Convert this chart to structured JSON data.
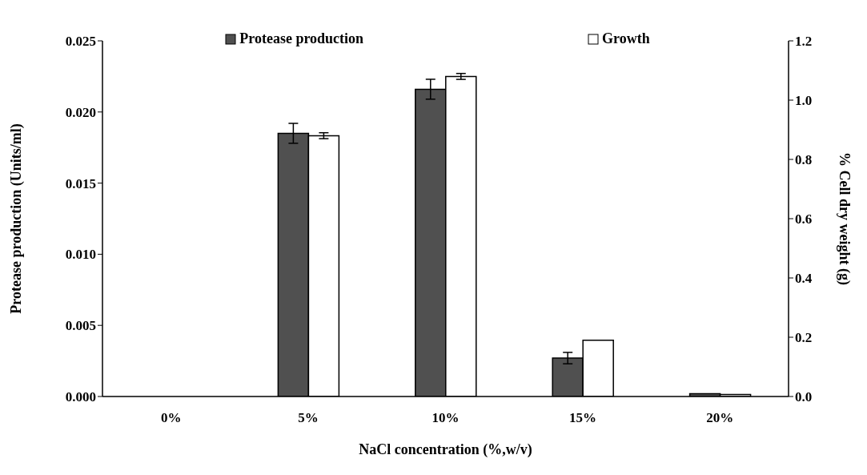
{
  "chart_data": {
    "type": "bar",
    "xlabel": "NaCl concentration (%,w/v)",
    "ylabel": "Protease production (Units/ml)",
    "y2label": "% Cell dry weight (g)",
    "categories": [
      "0%",
      "5%",
      "10%",
      "15%",
      "20%"
    ],
    "series": [
      {
        "name": "Protease production",
        "color": "#505050",
        "values": [
          0,
          0.0185,
          0.0216,
          0.0027,
          0.0002
        ],
        "errors": [
          null,
          0.0007,
          0.0007,
          0.0004,
          null
        ]
      },
      {
        "name": "Growth",
        "color": "#ffffff",
        "axis": "y2",
        "values": [
          0,
          0.88,
          1.08,
          0.19,
          0.007
        ],
        "errors": [
          null,
          0.01,
          0.01,
          null,
          null
        ]
      }
    ],
    "ylim": [
      0,
      0.025
    ],
    "yticks": [
      {
        "value": 0,
        "label": "0.000"
      },
      {
        "value": 0.005,
        "label": "0.005"
      },
      {
        "value": 0.01,
        "label": "0.010"
      },
      {
        "value": 0.015,
        "label": "0.015"
      },
      {
        "value": 0.02,
        "label": "0.020"
      },
      {
        "value": 0.025,
        "label": "0.025"
      }
    ],
    "y2lim": [
      0,
      1.2
    ],
    "y2ticks": [
      {
        "value": 0,
        "label": "0.0"
      },
      {
        "value": 0.2,
        "label": "0.2"
      },
      {
        "value": 0.4,
        "label": "0.4"
      },
      {
        "value": 0.6,
        "label": "0.6"
      },
      {
        "value": 0.8,
        "label": "0.8"
      },
      {
        "value": 1,
        "label": "1.0"
      },
      {
        "value": 1.2,
        "label": "1.2"
      }
    ],
    "grid": false,
    "legend": "top"
  }
}
